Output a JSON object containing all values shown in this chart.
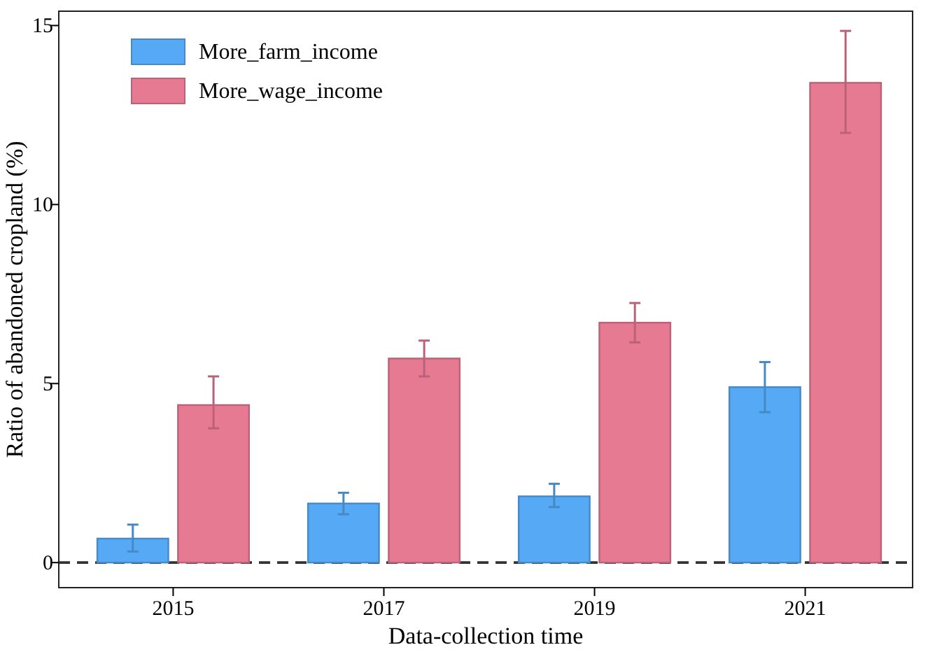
{
  "chart_data": {
    "type": "bar",
    "xlabel": "Data-collection time",
    "ylabel": "Ratio of abandoned cropland (%)",
    "categories": [
      "2015",
      "2017",
      "2019",
      "2021"
    ],
    "series": [
      {
        "name": "More_farm_income",
        "color": "#56aaf5",
        "values": [
          0.67,
          1.65,
          1.85,
          4.9
        ],
        "errors": [
          [
            0.31,
            1.06
          ],
          [
            1.35,
            1.95
          ],
          [
            1.55,
            2.2
          ],
          [
            4.2,
            5.6
          ]
        ]
      },
      {
        "name": "More_wage_income",
        "color": "#e77a93",
        "values": [
          4.4,
          5.7,
          6.7,
          13.4
        ],
        "errors": [
          [
            3.75,
            5.2
          ],
          [
            5.2,
            6.2
          ],
          [
            6.15,
            7.25
          ],
          [
            12.0,
            14.85
          ]
        ]
      }
    ],
    "ylim": [
      -0.7,
      15.4
    ],
    "yticks": [
      0,
      5,
      10,
      15
    ],
    "grid": false,
    "legend": "top left",
    "ref_lines": [
      {
        "axis": "y",
        "value": 0,
        "color": "#333333",
        "line_style": "dashed"
      }
    ]
  }
}
